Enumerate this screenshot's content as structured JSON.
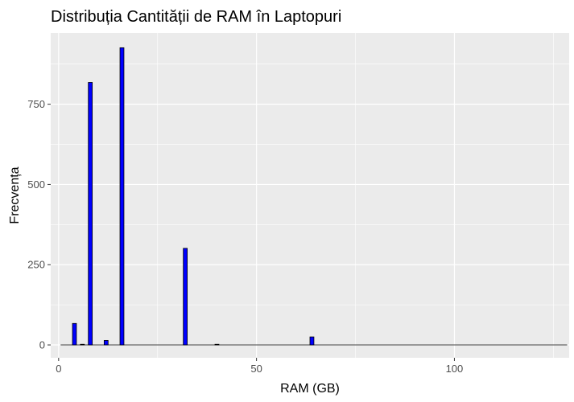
{
  "chart_data": {
    "type": "bar",
    "title": "Distribuția Cantității de RAM în Laptopuri",
    "xlabel": "RAM (GB)",
    "ylabel": "Frecvența",
    "xlim": [
      -2,
      129
    ],
    "ylim": [
      -40,
      972
    ],
    "x_ticks": [
      0,
      50,
      100
    ],
    "x_tick_labels": [
      "0",
      "50",
      "100"
    ],
    "y_ticks": [
      0,
      250,
      500,
      750
    ],
    "y_tick_labels": [
      "0",
      "250",
      "500",
      "750"
    ],
    "bin_width": 1,
    "grid": true,
    "bar_color": "#0000ff",
    "bar_outline": "#000000",
    "panel_background": "#ebebeb",
    "grid_color": "#ffffff",
    "x": [
      4,
      6,
      8,
      12,
      16,
      32,
      40,
      64
    ],
    "values": [
      67,
      2,
      818,
      14,
      926,
      301,
      2,
      25
    ],
    "x_range_end": 128
  }
}
